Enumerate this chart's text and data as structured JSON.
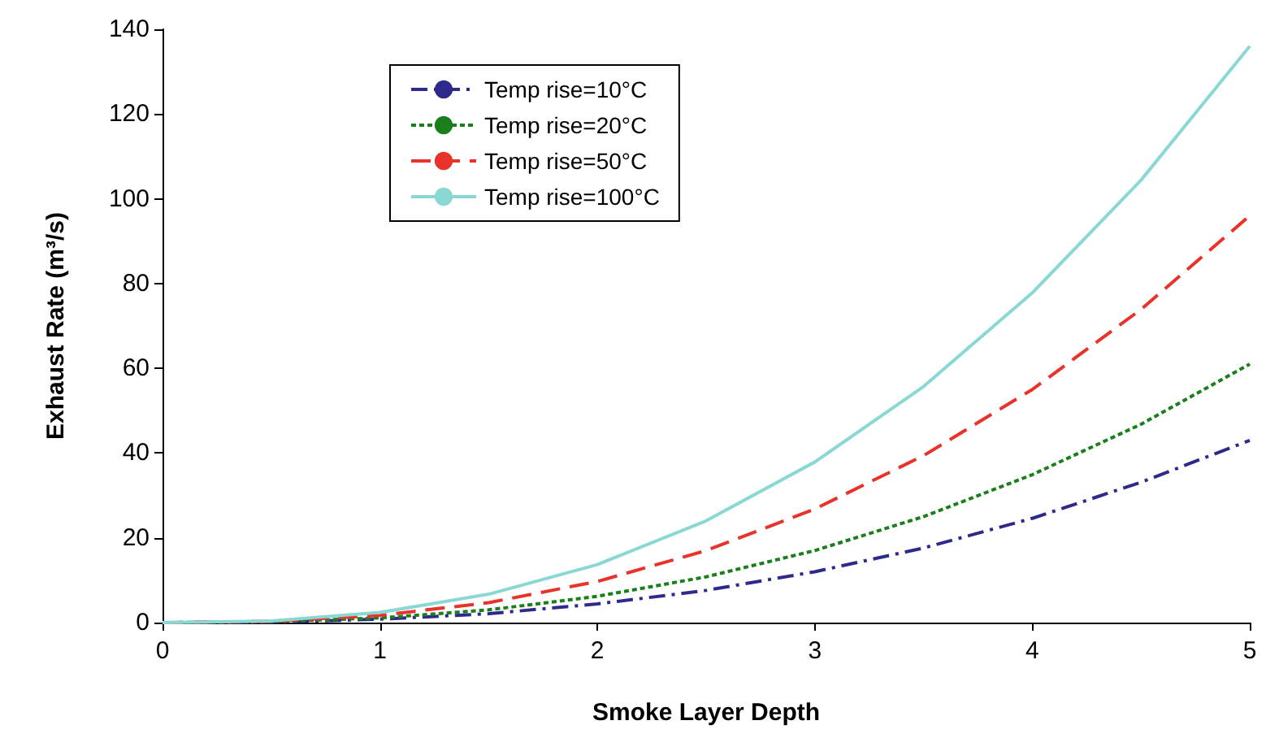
{
  "chart_data": {
    "type": "line",
    "xlabel": "Smoke Layer Depth",
    "ylabel": "Exhaust Rate (m³/s)",
    "x": [
      0,
      0.5,
      1,
      1.5,
      2,
      2.5,
      3,
      3.5,
      4,
      4.5,
      5
    ],
    "series": [
      {
        "name": "Temp rise=10°C",
        "color": "#2e2a8c",
        "line_style": "dashdot",
        "values": [
          0,
          0.1,
          0.8,
          2.1,
          4.4,
          7.6,
          12,
          17.6,
          24.6,
          33.1,
          43
        ]
      },
      {
        "name": "Temp rise=20°C",
        "color": "#1a7f1a",
        "line_style": "dotted",
        "values": [
          0,
          0.2,
          1.1,
          3,
          6.2,
          10.8,
          17,
          25,
          34.9,
          46.8,
          61
        ]
      },
      {
        "name": "Temp rise=50°C",
        "color": "#e8322a",
        "line_style": "dashed",
        "values": [
          0,
          0.3,
          1.7,
          4.7,
          9.7,
          17,
          26.8,
          39.4,
          55,
          73.9,
          96
        ]
      },
      {
        "name": "Temp rise=100°C",
        "color": "#8ad8d4",
        "line_style": "solid",
        "values": [
          0,
          0.4,
          2.4,
          6.7,
          13.7,
          24,
          37.9,
          55.7,
          77.8,
          104.4,
          136
        ]
      }
    ],
    "xlim": [
      0,
      5
    ],
    "xticks": [
      0,
      1,
      2,
      3,
      4,
      5
    ],
    "ylim": [
      0,
      140
    ],
    "yticks": [
      0,
      20,
      40,
      60,
      80,
      100,
      120,
      140
    ],
    "grid": false,
    "legend": "top left",
    "marker": "none"
  }
}
